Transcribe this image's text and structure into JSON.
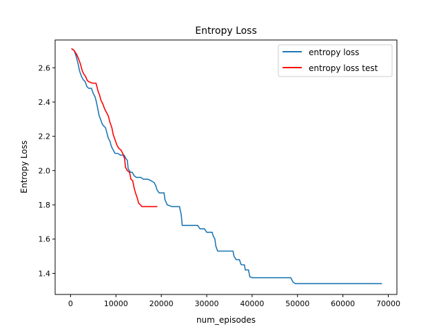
{
  "chart_data": {
    "type": "line",
    "title": "Entropy Loss",
    "xlabel": "num_episodes",
    "ylabel": "Entropy Loss",
    "xlim": [
      -3400,
      71900
    ],
    "ylim": [
      1.277,
      2.762
    ],
    "xticks": [
      0,
      10000,
      20000,
      30000,
      40000,
      50000,
      60000,
      70000
    ],
    "xtick_labels": [
      "0",
      "10000",
      "20000",
      "30000",
      "40000",
      "50000",
      "60000",
      "70000"
    ],
    "yticks": [
      1.4,
      1.6,
      1.8,
      2.0,
      2.2,
      2.4,
      2.6
    ],
    "ytick_labels": [
      "1.4",
      "1.6",
      "1.8",
      "2.0",
      "2.2",
      "2.4",
      "2.6"
    ],
    "grid": false,
    "legend_position": "top-right",
    "series": [
      {
        "name": "entropy loss",
        "color": "#1f77b4",
        "points": [
          [
            300,
            2.71
          ],
          [
            800,
            2.7
          ],
          [
            1200,
            2.67
          ],
          [
            1600,
            2.63
          ],
          [
            2000,
            2.58
          ],
          [
            2400,
            2.55
          ],
          [
            2800,
            2.53
          ],
          [
            3200,
            2.52
          ],
          [
            3600,
            2.49
          ],
          [
            4000,
            2.48
          ],
          [
            4600,
            2.48
          ],
          [
            5000,
            2.45
          ],
          [
            5400,
            2.43
          ],
          [
            5700,
            2.4
          ],
          [
            6000,
            2.36
          ],
          [
            6300,
            2.32
          ],
          [
            6600,
            2.3
          ],
          [
            7000,
            2.27
          ],
          [
            7300,
            2.26
          ],
          [
            7700,
            2.25
          ],
          [
            8000,
            2.22
          ],
          [
            8300,
            2.19
          ],
          [
            8700,
            2.17
          ],
          [
            9000,
            2.14
          ],
          [
            9400,
            2.12
          ],
          [
            9800,
            2.1
          ],
          [
            10400,
            2.1
          ],
          [
            11000,
            2.09
          ],
          [
            11800,
            2.09
          ],
          [
            12200,
            2.07
          ],
          [
            12500,
            2.06
          ],
          [
            12700,
            2.01
          ],
          [
            13200,
            1.99
          ],
          [
            13600,
            1.99
          ],
          [
            14000,
            1.97
          ],
          [
            14500,
            1.96
          ],
          [
            15500,
            1.96
          ],
          [
            16000,
            1.95
          ],
          [
            17000,
            1.95
          ],
          [
            17800,
            1.94
          ],
          [
            18400,
            1.93
          ],
          [
            18800,
            1.91
          ],
          [
            19000,
            1.89
          ],
          [
            19500,
            1.87
          ],
          [
            20600,
            1.87
          ],
          [
            20800,
            1.83
          ],
          [
            21300,
            1.8
          ],
          [
            22300,
            1.79
          ],
          [
            24000,
            1.79
          ],
          [
            24400,
            1.74
          ],
          [
            24600,
            1.68
          ],
          [
            28000,
            1.68
          ],
          [
            28500,
            1.66
          ],
          [
            29500,
            1.66
          ],
          [
            30000,
            1.64
          ],
          [
            31200,
            1.64
          ],
          [
            31400,
            1.62
          ],
          [
            31800,
            1.6
          ],
          [
            32000,
            1.56
          ],
          [
            32400,
            1.53
          ],
          [
            35800,
            1.53
          ],
          [
            36000,
            1.5
          ],
          [
            36500,
            1.48
          ],
          [
            37200,
            1.48
          ],
          [
            37600,
            1.45
          ],
          [
            38300,
            1.45
          ],
          [
            38500,
            1.42
          ],
          [
            39200,
            1.42
          ],
          [
            39500,
            1.38
          ],
          [
            40000,
            1.375
          ],
          [
            48500,
            1.375
          ],
          [
            49000,
            1.35
          ],
          [
            49500,
            1.34
          ],
          [
            68500,
            1.34
          ]
        ]
      },
      {
        "name": "entropy loss test",
        "color": "#ff0000",
        "points": [
          [
            300,
            2.71
          ],
          [
            800,
            2.7
          ],
          [
            1300,
            2.68
          ],
          [
            1800,
            2.65
          ],
          [
            2200,
            2.62
          ],
          [
            2600,
            2.58
          ],
          [
            3000,
            2.56
          ],
          [
            3300,
            2.55
          ],
          [
            3600,
            2.53
          ],
          [
            3900,
            2.52
          ],
          [
            4800,
            2.51
          ],
          [
            5600,
            2.51
          ],
          [
            5900,
            2.48
          ],
          [
            6100,
            2.46
          ],
          [
            6400,
            2.44
          ],
          [
            6700,
            2.41
          ],
          [
            7100,
            2.39
          ],
          [
            7500,
            2.36
          ],
          [
            7900,
            2.34
          ],
          [
            8300,
            2.32
          ],
          [
            8700,
            2.28
          ],
          [
            9100,
            2.25
          ],
          [
            9400,
            2.21
          ],
          [
            9800,
            2.18
          ],
          [
            10200,
            2.15
          ],
          [
            10600,
            2.13
          ],
          [
            11100,
            2.12
          ],
          [
            11500,
            2.1
          ],
          [
            11900,
            2.07
          ],
          [
            12100,
            2.02
          ],
          [
            12500,
            2.0
          ],
          [
            13000,
            1.99
          ],
          [
            13300,
            1.95
          ],
          [
            13700,
            1.94
          ],
          [
            14000,
            1.9
          ],
          [
            14300,
            1.87
          ],
          [
            14700,
            1.84
          ],
          [
            15000,
            1.81
          ],
          [
            15400,
            1.8
          ],
          [
            15700,
            1.79
          ],
          [
            17500,
            1.79
          ],
          [
            19000,
            1.79
          ]
        ]
      }
    ]
  }
}
